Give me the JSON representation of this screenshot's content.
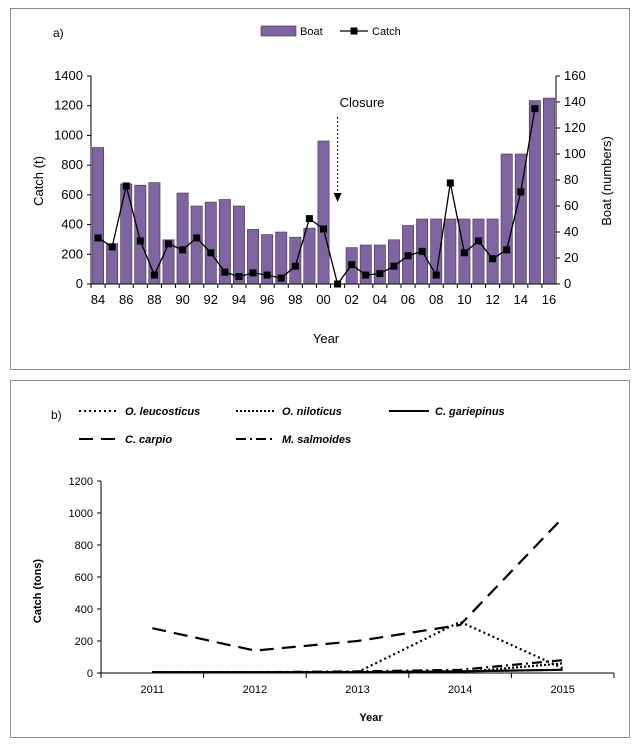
{
  "charts": [
    {
      "panel_label": "a)",
      "type": "bar",
      "xlabel": "Year",
      "ylabel_left": "Catch (t)",
      "ylabel_right": "Boat (numbers)",
      "ylim_left": [
        0,
        1400
      ],
      "ylim_right": [
        0,
        160
      ],
      "yticks_left": [
        "0",
        "200",
        "400",
        "600",
        "800",
        "1000",
        "1200",
        "1400"
      ],
      "yticks_right": [
        "0",
        "20",
        "40",
        "60",
        "80",
        "100",
        "120",
        "140",
        "160"
      ],
      "legend": {
        "position": "top-center",
        "boat_label": "Boat",
        "catch_label": "Catch"
      },
      "annotation": {
        "text": "Closure",
        "year": "01"
      },
      "years": [
        "84",
        "85",
        "86",
        "87",
        "88",
        "89",
        "90",
        "91",
        "92",
        "93",
        "94",
        "95",
        "96",
        "97",
        "98",
        "99",
        "00",
        "01",
        "02",
        "03",
        "04",
        "05",
        "06",
        "07",
        "08",
        "09",
        "10",
        "11",
        "12",
        "13",
        "14",
        "15",
        "16"
      ],
      "xtick_labels": [
        "84",
        "86",
        "88",
        "90",
        "92",
        "94",
        "96",
        "98",
        "00",
        "02",
        "04",
        "06",
        "08",
        "10",
        "12",
        "14",
        "16"
      ],
      "series": [
        {
          "name": "Boat",
          "type": "bar",
          "axis": "right",
          "color": "#8064a2",
          "values": [
            105,
            31,
            77,
            76,
            78,
            34,
            70,
            60,
            63,
            65,
            60,
            42,
            38,
            40,
            36,
            43,
            110,
            null,
            28,
            30,
            30,
            34,
            45,
            50,
            50,
            50,
            50,
            50,
            50,
            100,
            100,
            141,
            143
          ]
        },
        {
          "name": "Catch",
          "type": "line",
          "axis": "left",
          "color": "#000000",
          "values": [
            310,
            250,
            660,
            290,
            60,
            270,
            230,
            310,
            210,
            80,
            50,
            75,
            60,
            40,
            120,
            440,
            370,
            0,
            130,
            60,
            70,
            120,
            190,
            220,
            60,
            680,
            210,
            290,
            170,
            230,
            620,
            1180,
            null
          ]
        }
      ]
    },
    {
      "panel_label": "b)",
      "type": "line",
      "xlabel": "Year",
      "ylabel": "Catch (tons)",
      "ylim": [
        0,
        1200
      ],
      "yticks": [
        "0",
        "200",
        "400",
        "600",
        "800",
        "1000",
        "1200"
      ],
      "x": [
        "2011",
        "2012",
        "2013",
        "2014",
        "2015"
      ],
      "legend": {
        "position": "top"
      },
      "series": [
        {
          "name": "O. leucosticus",
          "dash": "2,3",
          "values": [
            5,
            5,
            5,
            320,
            30
          ]
        },
        {
          "name": "O. niloticus",
          "dash": "2,2",
          "values": [
            5,
            5,
            5,
            5,
            60
          ]
        },
        {
          "name": "C. gariepinus",
          "dash": "",
          "values": [
            5,
            5,
            5,
            10,
            20
          ]
        },
        {
          "name": "C. carpio",
          "dash": "14,8",
          "values": [
            280,
            140,
            200,
            300,
            970
          ]
        },
        {
          "name": "M. salmoides",
          "dash": "10,4,2,4",
          "values": [
            5,
            5,
            10,
            20,
            80
          ]
        }
      ]
    }
  ]
}
